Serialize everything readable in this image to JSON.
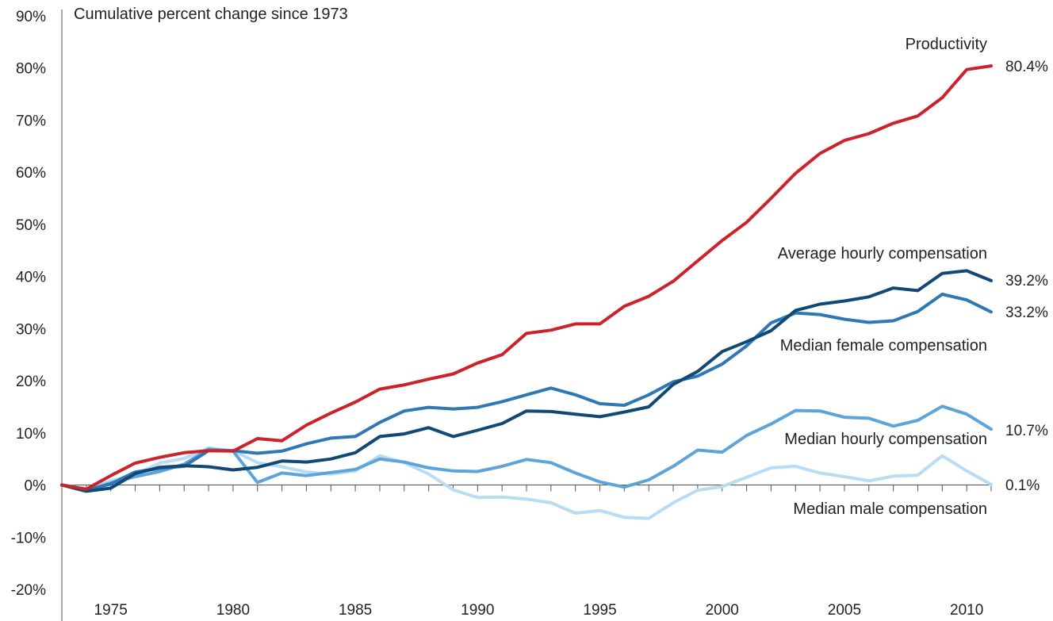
{
  "chart_data": {
    "type": "line",
    "title": "",
    "subtitle": "Cumulative percent change since 1973",
    "xlabel": "",
    "ylabel": "",
    "xlim": [
      1973,
      2011
    ],
    "ylim": [
      -20,
      90
    ],
    "yticks": [
      -20,
      -10,
      0,
      10,
      20,
      30,
      40,
      50,
      60,
      70,
      80,
      90
    ],
    "ytick_labels": [
      "-20%",
      "-10%",
      "0%",
      "10%",
      "20%",
      "30%",
      "40%",
      "50%",
      "60%",
      "70%",
      "80%",
      "90%"
    ],
    "xticks": [
      1975,
      1980,
      1985,
      1990,
      1995,
      2000,
      2005,
      2010
    ],
    "xtick_labels": [
      "1975",
      "1980",
      "1985",
      "1990",
      "1995",
      "2000",
      "2005",
      "2010"
    ],
    "grid": false,
    "legend": "inline labels",
    "x": [
      1973,
      1974,
      1975,
      1976,
      1977,
      1978,
      1979,
      1980,
      1981,
      1982,
      1983,
      1984,
      1985,
      1986,
      1987,
      1988,
      1989,
      1990,
      1991,
      1992,
      1993,
      1994,
      1995,
      1996,
      1997,
      1998,
      1999,
      2000,
      2001,
      2002,
      2003,
      2004,
      2005,
      2006,
      2007,
      2008,
      2009,
      2010,
      2011
    ],
    "series": [
      {
        "name": "Productivity",
        "end_label": "80.4%",
        "color": "#cc2229",
        "values": [
          0,
          -0.8,
          1.8,
          4.2,
          5.3,
          6.2,
          6.6,
          6.5,
          8.9,
          8.5,
          11.5,
          13.8,
          15.9,
          18.4,
          19.2,
          20.3,
          21.3,
          23.4,
          25.0,
          29.1,
          29.7,
          30.9,
          30.9,
          34.3,
          36.2,
          39.1,
          43.0,
          46.9,
          50.4,
          55.0,
          59.8,
          63.6,
          66.1,
          67.4,
          69.4,
          70.8,
          74.3,
          79.7,
          80.4
        ]
      },
      {
        "name": "Average hourly compensation",
        "end_label": "39.2%",
        "color": "#124874",
        "values": [
          0,
          -1.2,
          -0.6,
          2.2,
          3.4,
          3.7,
          3.5,
          2.9,
          3.4,
          4.6,
          4.4,
          5.0,
          6.2,
          9.3,
          9.8,
          11.0,
          9.3,
          10.5,
          11.8,
          14.2,
          14.1,
          13.6,
          13.1,
          14.0,
          15.0,
          19.3,
          21.8,
          25.6,
          27.5,
          29.6,
          33.5,
          34.7,
          35.3,
          36.1,
          37.8,
          37.3,
          40.6,
          41.1,
          39.2
        ]
      },
      {
        "name": "Median female compensation",
        "end_label": "33.2%",
        "color": "#2f78b6",
        "values": [
          0,
          -1.0,
          0.2,
          2.5,
          3.2,
          3.6,
          6.6,
          6.6,
          6.1,
          6.5,
          7.9,
          9.0,
          9.3,
          12.0,
          14.2,
          14.9,
          14.6,
          14.9,
          16.0,
          17.3,
          18.6,
          17.3,
          15.6,
          15.3,
          17.3,
          19.8,
          20.9,
          23.2,
          26.7,
          31.1,
          33.0,
          32.7,
          31.8,
          31.2,
          31.5,
          33.3,
          36.6,
          35.5,
          33.2
        ]
      },
      {
        "name": "Median hourly compensation",
        "end_label": "10.7%",
        "color": "#5ea4d8",
        "values": [
          0,
          -1.1,
          0.4,
          1.6,
          2.6,
          4.0,
          6.9,
          6.5,
          0.5,
          2.3,
          1.8,
          2.4,
          3.0,
          5.0,
          4.4,
          3.3,
          2.7,
          2.6,
          3.6,
          4.9,
          4.3,
          2.3,
          0.6,
          -0.4,
          1.0,
          3.6,
          6.7,
          6.3,
          9.5,
          11.7,
          14.3,
          14.2,
          13.0,
          12.8,
          11.3,
          12.4,
          15.1,
          13.6,
          10.7
        ]
      },
      {
        "name": "Median male compensation",
        "end_label": "0.1%",
        "color": "#b8dcf4",
        "values": [
          0,
          -0.7,
          0.8,
          2.0,
          4.2,
          5.1,
          7.1,
          6.6,
          4.3,
          3.5,
          2.5,
          2.1,
          2.7,
          5.6,
          4.3,
          2.1,
          -0.9,
          -2.4,
          -2.3,
          -2.7,
          -3.4,
          -5.4,
          -4.9,
          -6.2,
          -6.4,
          -3.4,
          -1.0,
          -0.3,
          1.5,
          3.3,
          3.6,
          2.3,
          1.6,
          0.8,
          1.7,
          1.9,
          5.6,
          2.7,
          0.1
        ]
      }
    ]
  }
}
